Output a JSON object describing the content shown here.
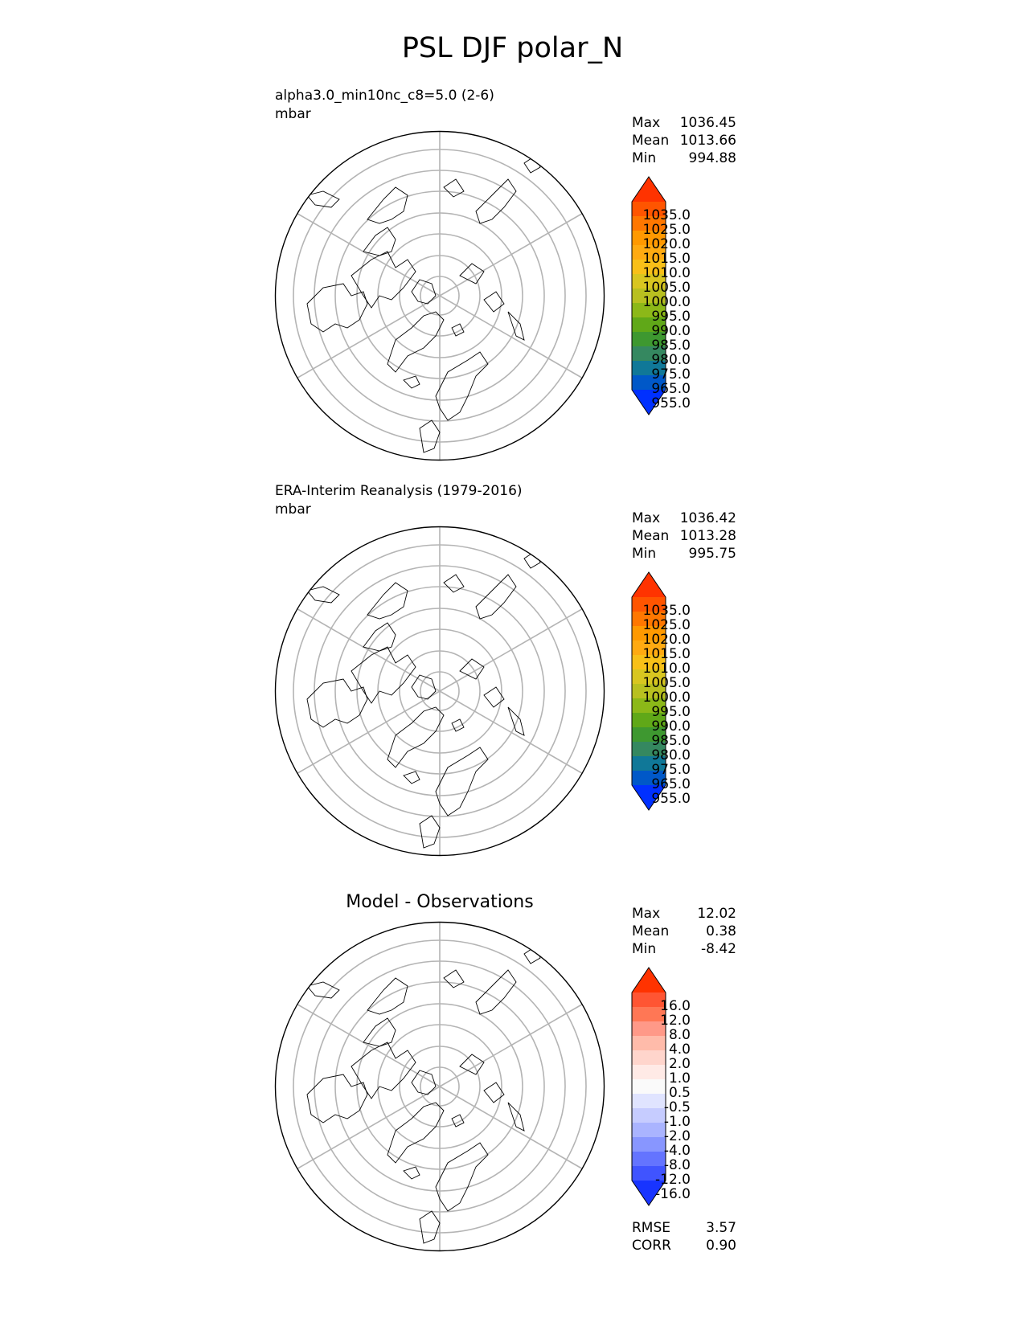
{
  "title": "PSL DJF polar_N",
  "panels": [
    {
      "id": "model",
      "title_left": "alpha3.0_min10nc_c8=5.0 (2-6)",
      "units": "mbar",
      "title_center": "",
      "stats": [
        {
          "label": "Max",
          "value": "1036.45"
        },
        {
          "label": "Mean",
          "value": "1013.66"
        },
        {
          "label": "Min",
          "value": "994.88"
        }
      ]
    },
    {
      "id": "obs",
      "title_left": "ERA-Interim Reanalysis (1979-2016)",
      "units": "mbar",
      "title_center": "",
      "stats": [
        {
          "label": "Max",
          "value": "1036.42"
        },
        {
          "label": "Mean",
          "value": "1013.28"
        },
        {
          "label": "Min",
          "value": "995.75"
        }
      ]
    },
    {
      "id": "diff",
      "title_left": "",
      "units": "",
      "title_center": "Model - Observations",
      "stats": [
        {
          "label": "Max",
          "value": "12.02"
        },
        {
          "label": "Mean",
          "value": "0.38"
        },
        {
          "label": "Min",
          "value": "-8.42"
        }
      ]
    }
  ],
  "metrics": [
    {
      "label": "RMSE",
      "value": "3.57"
    },
    {
      "label": "CORR",
      "value": "0.90"
    }
  ],
  "chart_data": [
    {
      "type": "map",
      "projection": "north polar stereographic",
      "colorbar": {
        "labels": [
          "1035.0",
          "1025.0",
          "1020.0",
          "1015.0",
          "1010.0",
          "1005.0",
          "1000.0",
          "995.0",
          "990.0",
          "985.0",
          "980.0",
          "975.0",
          "965.0",
          "955.0"
        ],
        "colors": [
          "#ff3300",
          "#ff5500",
          "#ff7700",
          "#ff9900",
          "#ffaa11",
          "#f8c018",
          "#d8c620",
          "#b8c020",
          "#8cb818",
          "#60a818",
          "#3e9830",
          "#358860",
          "#107898",
          "#0058c8",
          "#0030ff"
        ],
        "extend": "both"
      }
    },
    {
      "type": "map",
      "projection": "north polar stereographic",
      "colorbar": {
        "labels": [
          "1035.0",
          "1025.0",
          "1020.0",
          "1015.0",
          "1010.0",
          "1005.0",
          "1000.0",
          "995.0",
          "990.0",
          "985.0",
          "980.0",
          "975.0",
          "965.0",
          "955.0"
        ],
        "colors": [
          "#ff3300",
          "#ff5500",
          "#ff7700",
          "#ff9900",
          "#ffaa11",
          "#f8c018",
          "#d8c620",
          "#b8c020",
          "#8cb818",
          "#60a818",
          "#3e9830",
          "#358860",
          "#107898",
          "#0058c8",
          "#0030ff"
        ],
        "extend": "both"
      }
    },
    {
      "type": "map",
      "projection": "north polar stereographic",
      "colorbar": {
        "labels": [
          "16.0",
          "12.0",
          "8.0",
          "4.0",
          "2.0",
          "1.0",
          "0.5",
          "-0.5",
          "-1.0",
          "-2.0",
          "-4.0",
          "-8.0",
          "-12.0",
          "-16.0"
        ],
        "colors": [
          "#ff3300",
          "#ff5533",
          "#ff7755",
          "#ff9988",
          "#ffbbaa",
          "#ffd5cc",
          "#ffeae6",
          "#fafafa",
          "#e0e4ff",
          "#c6ccff",
          "#aab4ff",
          "#8896ff",
          "#6474ff",
          "#4054ff",
          "#1834ff"
        ],
        "extend": "both"
      }
    }
  ]
}
